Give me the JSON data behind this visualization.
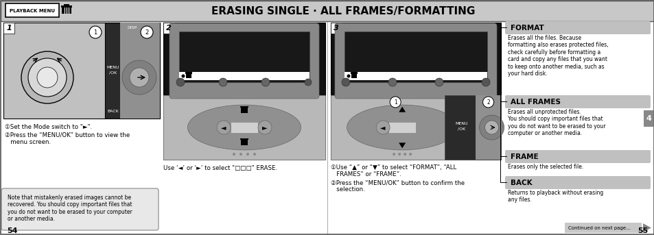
{
  "bg_color": "#e0e0e0",
  "page_bg": "#ffffff",
  "title_bar_color": "#d0d0d0",
  "title_text": "ERASING SINGLE · ALL FRAMES/FORMATTING",
  "playback_menu_label": "PLAYBACK MENU",
  "page_num_left": "54",
  "page_num_right": "55",
  "step1_label": "1",
  "step1_text1": "①Set the Mode switch to \"►\".",
  "step1_text2": "②Press the “MENU/OK” button to view the\n   menu screen.",
  "step2_label": "2",
  "step2_caption": "Use ‘◄’ or ‘►’ to select \"���\" ERASE.",
  "step3_label": "3",
  "step3_text1": "①Use “▲” or “▼” to select “FORMAT”, “ALL\n   FRAMES” or “FRAME”.",
  "step3_text2": "②Press the “MENU/OK” button to confirm the\n   selection.",
  "step4_label": "4",
  "format_header": "FORMAT",
  "format_text": "Erases all the files. Because\nformatting also erases protected files,\ncheck carefully before formatting a\ncard and copy any files that you want\nto keep onto another media, such as\nyour hard disk.",
  "allframes_header": "ALL FRAMES",
  "allframes_text": "Erases all unprotected files.\nYou should copy important files that\nyou do not want to be erased to your\ncomputer or another media.",
  "frame_header": "FRAME",
  "frame_text": "Erases only the selected file.",
  "back_header": "BACK",
  "back_text": "Returns to playback without erasing\nany files.",
  "note_text": "Note that mistakenly erased images cannot be\nrecovered. You should copy important files that\nyou do not want to be erased to your computer\nor another media.",
  "continued_text": "Continued on next page...",
  "header_gray": "#c8c8c8",
  "dark_gray": "#404040",
  "mid_gray": "#808080",
  "light_gray": "#c0c0c0",
  "panel_gray": "#b0b0b0",
  "camera_body": "#a0a0a0",
  "black": "#000000",
  "white": "#ffffff"
}
